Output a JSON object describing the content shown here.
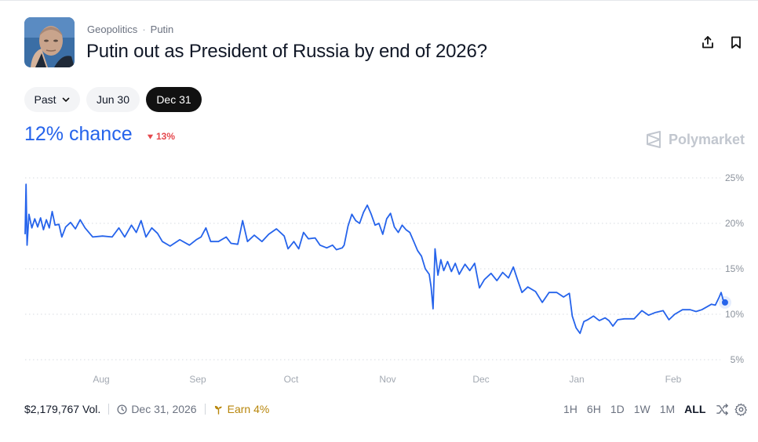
{
  "header": {
    "breadcrumb": [
      "Geopolitics",
      "Putin"
    ],
    "breadcrumb_sep": "·",
    "title": "Putin out as President of Russia by end of 2026?",
    "icons": [
      "share-icon",
      "bookmark-icon"
    ]
  },
  "date_pills": [
    {
      "label": "Past",
      "style": "light",
      "has_chevron": true
    },
    {
      "label": "Jun 30",
      "style": "light"
    },
    {
      "label": "Dec 31",
      "style": "dark",
      "selected": true
    }
  ],
  "summary": {
    "chance_text": "12% chance",
    "change_text": "13%",
    "change_direction": "down",
    "change_color": "#e5484d",
    "accent_color": "#2563eb"
  },
  "brand": {
    "name": "Polymarket",
    "icon": "polymarket-logo-icon"
  },
  "chart_data": {
    "type": "line",
    "x_tick_labels": [
      "Aug",
      "Sep",
      "Oct",
      "Nov",
      "Dec",
      "Jan",
      "Feb"
    ],
    "y_tick_labels": [
      "25%",
      "20%",
      "15%",
      "10%",
      "5%"
    ],
    "y_ticks": [
      25,
      20,
      15,
      10,
      5
    ],
    "ylim": [
      5,
      25
    ],
    "x_range": [
      0,
      7.35
    ],
    "grid": "horizontal dotted",
    "series": [
      {
        "color": "#2563eb",
        "points": [
          [
            0.0,
            18.8
          ],
          [
            0.01,
            24.3
          ],
          [
            0.02,
            17.6
          ],
          [
            0.04,
            21.0
          ],
          [
            0.07,
            19.5
          ],
          [
            0.1,
            20.5
          ],
          [
            0.13,
            19.6
          ],
          [
            0.16,
            20.6
          ],
          [
            0.19,
            19.3
          ],
          [
            0.22,
            20.4
          ],
          [
            0.25,
            19.5
          ],
          [
            0.28,
            21.3
          ],
          [
            0.31,
            19.8
          ],
          [
            0.35,
            19.9
          ],
          [
            0.38,
            18.5
          ],
          [
            0.42,
            19.6
          ],
          [
            0.47,
            20.1
          ],
          [
            0.52,
            19.4
          ],
          [
            0.57,
            20.4
          ],
          [
            0.62,
            19.5
          ],
          [
            0.7,
            18.5
          ],
          [
            0.8,
            18.6
          ],
          [
            0.9,
            18.5
          ],
          [
            0.97,
            19.5
          ],
          [
            1.03,
            18.5
          ],
          [
            1.1,
            19.8
          ],
          [
            1.15,
            19.0
          ],
          [
            1.2,
            20.3
          ],
          [
            1.25,
            18.5
          ],
          [
            1.31,
            19.5
          ],
          [
            1.37,
            18.9
          ],
          [
            1.42,
            18.0
          ],
          [
            1.5,
            17.5
          ],
          [
            1.6,
            18.2
          ],
          [
            1.7,
            17.6
          ],
          [
            1.77,
            18.2
          ],
          [
            1.82,
            18.5
          ],
          [
            1.87,
            19.5
          ],
          [
            1.92,
            18.0
          ],
          [
            2.0,
            18.0
          ],
          [
            2.08,
            18.5
          ],
          [
            2.13,
            17.8
          ],
          [
            2.2,
            17.7
          ],
          [
            2.25,
            20.3
          ],
          [
            2.3,
            18.0
          ],
          [
            2.37,
            18.7
          ],
          [
            2.45,
            18.0
          ],
          [
            2.52,
            18.8
          ],
          [
            2.6,
            19.4
          ],
          [
            2.68,
            18.6
          ],
          [
            2.72,
            17.2
          ],
          [
            2.78,
            18.0
          ],
          [
            2.83,
            17.2
          ],
          [
            2.88,
            19.0
          ],
          [
            2.93,
            18.3
          ],
          [
            3.0,
            18.4
          ],
          [
            3.05,
            17.6
          ],
          [
            3.12,
            17.3
          ],
          [
            3.18,
            17.6
          ],
          [
            3.22,
            17.1
          ],
          [
            3.28,
            17.3
          ],
          [
            3.3,
            17.6
          ],
          [
            3.34,
            19.7
          ],
          [
            3.38,
            21.0
          ],
          [
            3.42,
            20.3
          ],
          [
            3.46,
            20.0
          ],
          [
            3.5,
            21.2
          ],
          [
            3.54,
            22.0
          ],
          [
            3.58,
            21.0
          ],
          [
            3.62,
            19.8
          ],
          [
            3.66,
            20.0
          ],
          [
            3.7,
            18.8
          ],
          [
            3.74,
            20.5
          ],
          [
            3.78,
            21.1
          ],
          [
            3.82,
            19.6
          ],
          [
            3.86,
            19.0
          ],
          [
            3.9,
            19.8
          ],
          [
            3.94,
            19.3
          ],
          [
            3.98,
            19.0
          ],
          [
            4.02,
            18.0
          ],
          [
            4.06,
            17.0
          ],
          [
            4.1,
            16.4
          ],
          [
            4.14,
            15.0
          ],
          [
            4.18,
            14.4
          ],
          [
            4.2,
            13.0
          ],
          [
            4.22,
            10.6
          ],
          [
            4.24,
            17.2
          ],
          [
            4.27,
            14.3
          ],
          [
            4.3,
            16.0
          ],
          [
            4.33,
            14.8
          ],
          [
            4.37,
            15.8
          ],
          [
            4.41,
            14.7
          ],
          [
            4.45,
            15.6
          ],
          [
            4.49,
            14.4
          ],
          [
            4.55,
            15.5
          ],
          [
            4.6,
            14.8
          ],
          [
            4.65,
            15.6
          ],
          [
            4.7,
            12.9
          ],
          [
            4.75,
            13.8
          ],
          [
            4.82,
            14.5
          ],
          [
            4.88,
            13.7
          ],
          [
            4.94,
            14.6
          ],
          [
            5.0,
            14.0
          ],
          [
            5.05,
            15.2
          ],
          [
            5.1,
            13.6
          ],
          [
            5.14,
            12.4
          ],
          [
            5.2,
            13.0
          ],
          [
            5.28,
            12.5
          ],
          [
            5.35,
            11.3
          ],
          [
            5.42,
            12.4
          ],
          [
            5.5,
            12.4
          ],
          [
            5.57,
            11.9
          ],
          [
            5.63,
            12.3
          ],
          [
            5.66,
            9.8
          ],
          [
            5.7,
            8.5
          ],
          [
            5.74,
            7.9
          ],
          [
            5.78,
            9.2
          ],
          [
            5.82,
            9.4
          ],
          [
            5.88,
            9.8
          ],
          [
            5.94,
            9.3
          ],
          [
            6.0,
            9.6
          ],
          [
            6.04,
            9.3
          ],
          [
            6.08,
            8.7
          ],
          [
            6.13,
            9.4
          ],
          [
            6.2,
            9.5
          ],
          [
            6.3,
            9.5
          ],
          [
            6.38,
            10.4
          ],
          [
            6.45,
            9.9
          ],
          [
            6.52,
            10.2
          ],
          [
            6.6,
            10.4
          ],
          [
            6.66,
            9.4
          ],
          [
            6.72,
            10.0
          ],
          [
            6.8,
            10.5
          ],
          [
            6.88,
            10.5
          ],
          [
            6.94,
            10.3
          ],
          [
            7.0,
            10.5
          ],
          [
            7.05,
            10.8
          ],
          [
            7.1,
            11.1
          ],
          [
            7.14,
            11.0
          ],
          [
            7.18,
            11.9
          ],
          [
            7.2,
            12.4
          ],
          [
            7.22,
            11.6
          ],
          [
            7.24,
            11.3
          ]
        ]
      }
    ]
  },
  "footer": {
    "volume": "$2,179,767 Vol.",
    "end_date": "Dec 31, 2026",
    "earn": "Earn 4%",
    "earn_color": "#b8860b",
    "ranges": [
      "1H",
      "6H",
      "1D",
      "1W",
      "1M",
      "ALL"
    ],
    "active_range": "ALL",
    "icons": [
      "shuffle-icon",
      "settings-icon"
    ]
  }
}
